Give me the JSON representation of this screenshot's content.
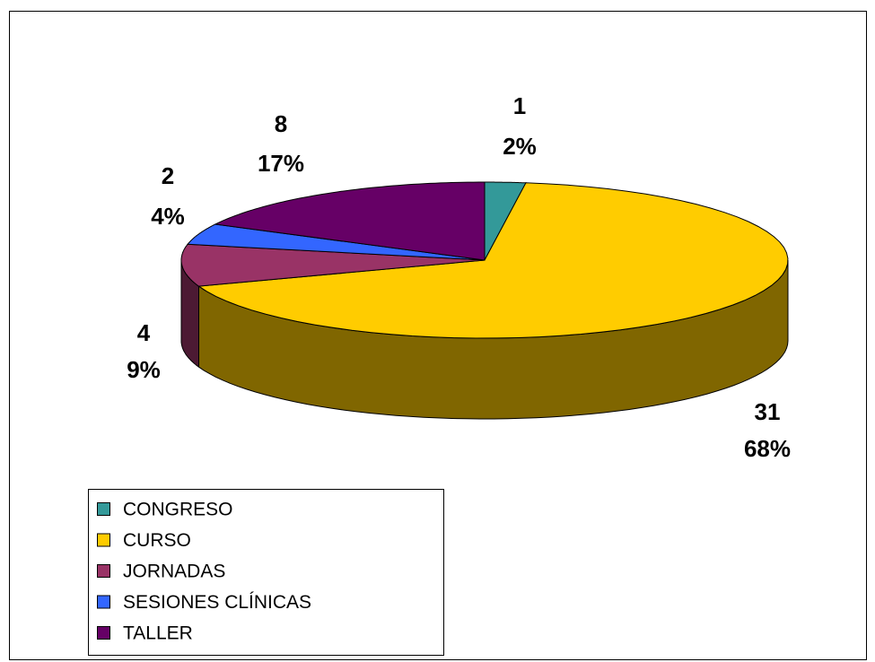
{
  "chart_data": {
    "type": "pie3d",
    "categories": [
      "CONGRESO",
      "CURSO",
      "JORNADAS",
      "SESIONES CLÍNICAS",
      "TALLER"
    ],
    "values": [
      1,
      31,
      4,
      2,
      8
    ],
    "percent_labels": [
      "2%",
      "68%",
      "9%",
      "4%",
      "17%"
    ],
    "colors": [
      "#339999",
      "#ffcc00",
      "#993366",
      "#3366ff",
      "#660066"
    ],
    "legend": "bottom-left"
  }
}
